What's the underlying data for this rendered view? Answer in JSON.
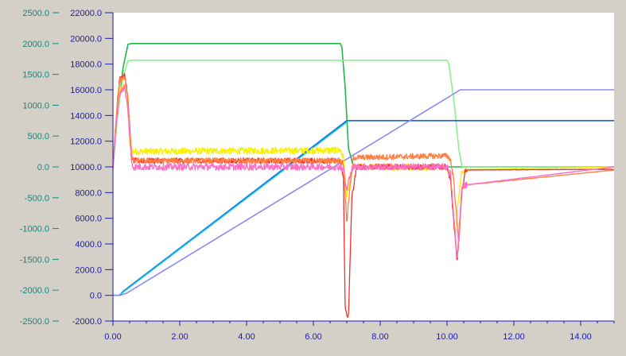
{
  "chart_data": {
    "type": "line",
    "title": "",
    "xlabel": "",
    "ylabel": "",
    "xlim": [
      0,
      15
    ],
    "y_left_lim": [
      -2500,
      2500
    ],
    "y_right_lim": [
      -2000,
      22000
    ],
    "x_ticks": [
      "0.00",
      "2.00",
      "4.00",
      "6.00",
      "8.00",
      "10.00",
      "12.00",
      "14.00"
    ],
    "y_left_ticks": [
      "2500.0",
      "2000.0",
      "1500.0",
      "1000.0",
      "500.0",
      "0.0",
      "-500.0",
      "-1000.0",
      "-1500.0",
      "-2000.0",
      "-2500.0"
    ],
    "y_right_ticks": [
      "22000.0",
      "20000.0",
      "18000.0",
      "16000.0",
      "14000.0",
      "12000.0",
      "10000.0",
      "8000.0",
      "6000.0",
      "4000.0",
      "2000.0",
      "0.0",
      "-2000.0"
    ],
    "grid": false,
    "colors": {
      "background": "#d4d0c8",
      "plot_area": "#ffffff",
      "left_axis": "#0a8a86",
      "right_axis": "#1a1ab0"
    },
    "series": [
      {
        "color": "#1fb84a",
        "axis": "left",
        "noise": 0,
        "x": [
          0.0,
          0.15,
          0.3,
          0.45,
          0.55,
          6.8,
          6.85,
          6.95,
          7.05,
          7.2,
          15.0
        ],
        "y": [
          0,
          900,
          1600,
          1990,
          2000,
          2000,
          1950,
          1300,
          300,
          0,
          0
        ]
      },
      {
        "color": "#8cf08c",
        "axis": "left",
        "noise": 0,
        "x": [
          0.0,
          0.15,
          0.3,
          0.45,
          0.55,
          10.0,
          10.05,
          10.2,
          10.35,
          10.45,
          15.0
        ],
        "y": [
          0,
          900,
          1450,
          1720,
          1730,
          1730,
          1680,
          1100,
          300,
          0,
          0
        ]
      },
      {
        "color": "#1565d8",
        "axis": "right",
        "noise": 0,
        "x": [
          0.0,
          0.2,
          0.3,
          7.0,
          15.0
        ],
        "y": [
          0,
          0,
          300,
          13600,
          13600
        ]
      },
      {
        "color": "#00c0f0",
        "axis": "right",
        "noise": 0,
        "x": [
          0.0,
          0.2,
          0.3,
          6.95,
          7.05
        ],
        "y": [
          0,
          0,
          250,
          13400,
          13600
        ]
      },
      {
        "color": "#8a8af0",
        "axis": "right",
        "noise": 0,
        "x": [
          0.0,
          0.2,
          0.4,
          10.4,
          15.0
        ],
        "y": [
          0,
          0,
          150,
          16000,
          16000
        ]
      },
      {
        "color": "#f8f000",
        "axis": "left",
        "noise": 55,
        "x": [
          0.0,
          0.1,
          0.2,
          0.35,
          0.45,
          0.5,
          0.6,
          6.8,
          6.9,
          7.0,
          7.1,
          7.2,
          10.0,
          10.1,
          10.25,
          10.35,
          10.45,
          15.0
        ],
        "y": [
          0,
          700,
          1250,
          1300,
          1000,
          350,
          250,
          270,
          150,
          -500,
          -200,
          0,
          0,
          -200,
          -1150,
          -450,
          -50,
          0
        ]
      },
      {
        "color": "#f03030",
        "axis": "left",
        "noise": 45,
        "x": [
          0.0,
          0.1,
          0.2,
          0.35,
          0.45,
          0.55,
          0.6,
          6.8,
          6.9,
          6.95,
          7.05,
          7.15,
          7.3,
          10.0,
          10.1,
          10.3,
          10.45,
          10.55,
          15.0
        ],
        "y": [
          0,
          800,
          1450,
          1500,
          1100,
          200,
          100,
          100,
          -200,
          -2300,
          -2450,
          -500,
          0,
          0,
          -200,
          -1550,
          -400,
          -50,
          -40
        ]
      },
      {
        "color": "#ff8040",
        "axis": "left",
        "noise": 45,
        "x": [
          0.0,
          0.1,
          0.2,
          0.35,
          0.45,
          0.55,
          0.6,
          6.8,
          6.9,
          7.0,
          7.1,
          7.2,
          10.0,
          10.1,
          10.2,
          10.35,
          10.45,
          15.0
        ],
        "y": [
          0,
          800,
          1400,
          1450,
          1100,
          200,
          100,
          100,
          50,
          -900,
          -300,
          150,
          180,
          120,
          -200,
          -1250,
          -300,
          -50
        ]
      },
      {
        "color": "#ff6ec7",
        "axis": "left",
        "noise": 55,
        "x": [
          0.0,
          0.1,
          0.2,
          0.35,
          0.45,
          0.55,
          0.6,
          6.8,
          6.9,
          7.0,
          7.1,
          7.2,
          10.0,
          10.1,
          10.2,
          10.3,
          10.45,
          15.0
        ],
        "y": [
          0,
          700,
          1200,
          1300,
          900,
          100,
          0,
          0,
          -50,
          -400,
          -100,
          0,
          0,
          -100,
          -800,
          -1500,
          -300,
          0
        ]
      }
    ]
  }
}
